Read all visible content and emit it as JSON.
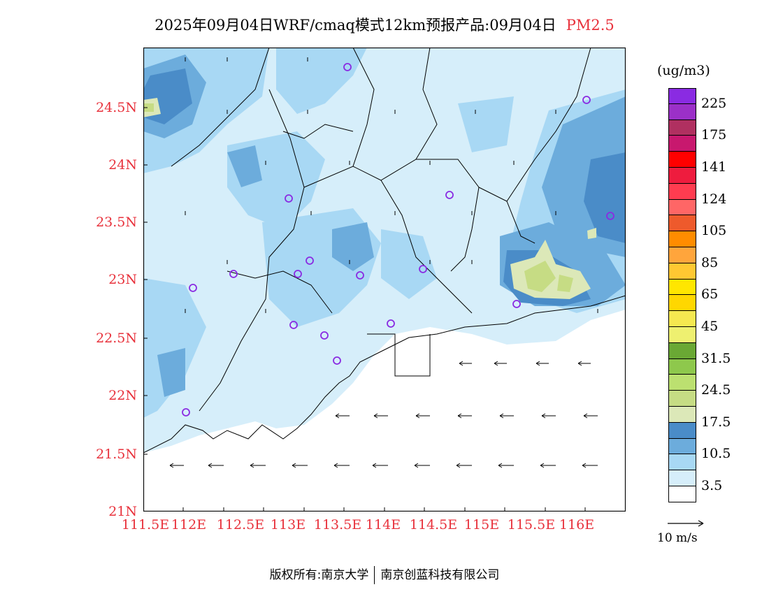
{
  "title": {
    "main": "2025年09月04日WRF/cmaq模式12km预报产品:09月04日",
    "variable": "PM2.5"
  },
  "axes": {
    "y_ticks": [
      "24.5N",
      "24N",
      "23.5N",
      "23N",
      "22.5N",
      "22N",
      "21.5N",
      "21N"
    ],
    "x_ticks": [
      "111.5E",
      "112E",
      "112.5E",
      "113E",
      "113.5E",
      "114E",
      "114.5E",
      "115E",
      "115.5E",
      "116E"
    ]
  },
  "legend": {
    "unit": "(ug/m3)",
    "ticks": [
      "225",
      "175",
      "141",
      "124",
      "105",
      "85",
      "65",
      "45",
      "31.5",
      "24.5",
      "17.5",
      "10.5",
      "3.5"
    ],
    "colors": [
      "#8a2be2",
      "#9b30c8",
      "#b03060",
      "#c8186e",
      "#ff0000",
      "#ee1c3e",
      "#ff3c50",
      "#ff6666",
      "#ee5a2c",
      "#ff8c00",
      "#ffa53c",
      "#ffc832",
      "#ffe600",
      "#ffd700",
      "#f5e850",
      "#eef070",
      "#6aa834",
      "#8ec84c",
      "#bce070",
      "#c6dc84",
      "#dce8b8",
      "#4a8cc8",
      "#6cacdc",
      "#a8d8f4",
      "#d6eefa",
      "#ffffff"
    ]
  },
  "wind_reference": "10 m/s",
  "footer": {
    "left": "版权所有:南京大学",
    "right": "南京创蓝科技有限公司"
  }
}
